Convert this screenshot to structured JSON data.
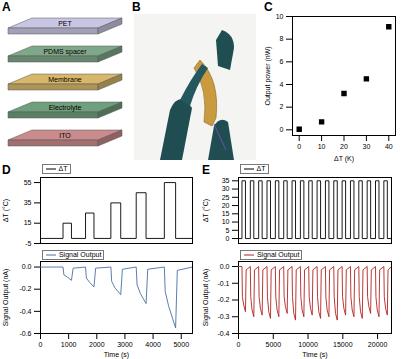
{
  "diagram": {
    "panel": "A",
    "layers": [
      {
        "label": "PET",
        "color": "#c9c6e3"
      },
      {
        "label": "PDMS spacer",
        "color": "#7fa88a"
      },
      {
        "label": "Membrane",
        "color": "#d8b76a"
      },
      {
        "label": "Electrolyte",
        "color": "#6f9f7c"
      },
      {
        "label": "ITO",
        "color": "#c98b8b"
      }
    ]
  },
  "photo": {
    "panel": "B"
  },
  "chart_data": [
    {
      "type": "scatter",
      "title": "C",
      "xlabel": "ΔT (K)",
      "ylabel": "Output power (nW)",
      "x": [
        0,
        10,
        20,
        30,
        40
      ],
      "values": [
        0.05,
        0.7,
        3.2,
        4.5,
        9.1
      ],
      "color": "#000000",
      "marker": "square",
      "xlim": [
        -3,
        43
      ],
      "xticks": [
        0,
        10,
        20,
        30,
        40
      ],
      "ylim": [
        -0.5,
        10
      ],
      "yticks": [
        0,
        2,
        4,
        6,
        8,
        10
      ],
      "grid": false
    },
    {
      "type": "line",
      "title": "D",
      "ylabel": "ΔT (°C)",
      "tick_labels": "y",
      "legend": "top-left",
      "grid": false,
      "x": [
        0,
        800,
        800,
        1100,
        1100,
        1600,
        1600,
        1900,
        1900,
        2500,
        2500,
        2850,
        2850,
        3400,
        3400,
        3750,
        3750,
        4400,
        4400,
        4800,
        4800,
        5400
      ],
      "series": [
        {
          "name": "ΔT",
          "color": "#000000",
          "values": [
            0,
            0,
            15,
            15,
            0,
            0,
            25,
            25,
            0,
            0,
            35,
            35,
            0,
            0,
            45,
            45,
            0,
            0,
            55,
            55,
            0,
            0
          ]
        }
      ],
      "xlim": [
        0,
        5400
      ],
      "ylim": [
        -5,
        60
      ],
      "yticks": [
        -5,
        15,
        35,
        55
      ]
    },
    {
      "type": "line",
      "xlabel": "Time (s)",
      "ylabel": "Signal Output (nA)",
      "legend": "top-left",
      "grid": false,
      "x": [
        0,
        800,
        830,
        950,
        1100,
        1160,
        1600,
        1630,
        1750,
        1900,
        1960,
        2500,
        2530,
        2650,
        2850,
        2910,
        3400,
        3430,
        3550,
        3750,
        3810,
        4400,
        4430,
        4550,
        4800,
        4860,
        5400
      ],
      "series": [
        {
          "name": "Signal Output",
          "color": "#4a6fa5",
          "values": [
            0,
            0,
            -0.07,
            -0.09,
            -0.12,
            -0.01,
            0,
            -0.1,
            -0.14,
            -0.18,
            -0.01,
            0,
            -0.13,
            -0.19,
            -0.25,
            -0.02,
            0,
            -0.16,
            -0.24,
            -0.33,
            -0.02,
            0,
            -0.22,
            -0.35,
            -0.55,
            -0.03,
            0
          ]
        }
      ],
      "xlim": [
        0,
        5400
      ],
      "xticks": [
        0,
        1000,
        2000,
        3000,
        4000,
        5000
      ],
      "ylim": [
        -0.6,
        0.05
      ],
      "yticks": [
        -0.6,
        -0.4,
        -0.2,
        {
          "value": 0,
          "label": "0.0"
        }
      ]
    },
    {
      "type": "line",
      "title": "E",
      "ylabel": "ΔT (°C)",
      "tick_labels": "y",
      "legend": "top-left",
      "grid": false,
      "x": [
        0,
        500,
        500,
        1000,
        1000,
        1700,
        1700,
        2200,
        2200,
        2900,
        2900,
        3400,
        3400,
        4100,
        4100,
        4600,
        4600,
        5300,
        5300,
        5800,
        5800,
        6500,
        6500,
        7000,
        7000,
        7700,
        7700,
        8200,
        8200,
        8900,
        8900,
        9400,
        9400,
        10100,
        10100,
        10600,
        10600,
        11300,
        11300,
        11800,
        11800,
        12500,
        12500,
        13000,
        13000,
        13700,
        13700,
        14200,
        14200,
        14900,
        14900,
        15400,
        15400,
        16100,
        16100,
        16600,
        16600,
        17300,
        17300,
        17800,
        17800,
        18500,
        18500,
        19000,
        19000,
        19700,
        19700,
        20200,
        20200,
        20900,
        20900,
        21400,
        21400,
        22000
      ],
      "series": [
        {
          "name": "ΔT",
          "color": "#000000",
          "values": [
            0,
            0,
            35,
            35,
            0,
            0,
            35,
            35,
            0,
            0,
            35,
            35,
            0,
            0,
            35,
            35,
            0,
            0,
            35,
            35,
            0,
            0,
            35,
            35,
            0,
            0,
            35,
            35,
            0,
            0,
            35,
            35,
            0,
            0,
            35,
            35,
            0,
            0,
            35,
            35,
            0,
            0,
            35,
            35,
            0,
            0,
            35,
            35,
            0,
            0,
            35,
            35,
            0,
            0,
            35,
            35,
            0,
            0,
            35,
            35,
            0,
            0,
            35,
            35,
            0,
            0,
            35,
            35,
            0,
            0,
            35,
            35,
            0,
            0
          ]
        }
      ],
      "xlim": [
        0,
        22000
      ],
      "ylim": [
        -3,
        37
      ],
      "yticks": [
        0,
        5,
        10,
        15,
        20,
        25,
        30,
        35
      ]
    },
    {
      "type": "line",
      "xlabel": "Time (s)",
      "ylabel": "Signal Output (nA)",
      "legend": "top-left",
      "grid": false,
      "x": [
        0,
        500,
        560,
        750,
        1000,
        1100,
        1700,
        1760,
        1950,
        2200,
        2300,
        2900,
        2960,
        3150,
        3400,
        3500,
        4100,
        4160,
        4350,
        4600,
        4700,
        5300,
        5360,
        5550,
        5800,
        5900,
        6500,
        6560,
        6750,
        7000,
        7100,
        7700,
        7760,
        7950,
        8200,
        8300,
        8900,
        8960,
        9150,
        9400,
        9500,
        10100,
        10160,
        10350,
        10600,
        10700,
        11300,
        11360,
        11550,
        11800,
        11900,
        12500,
        12560,
        12750,
        13000,
        13100,
        13700,
        13760,
        13950,
        14200,
        14300,
        14900,
        14960,
        15150,
        15400,
        15500,
        16100,
        16160,
        16350,
        16600,
        16700,
        17300,
        17360,
        17550,
        17800,
        17900,
        18500,
        18560,
        18750,
        19000,
        19100,
        19700,
        19760,
        19950,
        20200,
        20300,
        20900,
        20960,
        21150,
        21400,
        21500,
        22000
      ],
      "series": [
        {
          "name": "Signal Output",
          "color": "#b22222",
          "values": [
            0,
            0,
            -0.18,
            -0.23,
            -0.27,
            -0.02,
            0,
            -0.18,
            -0.26,
            -0.3,
            -0.02,
            0,
            -0.18,
            -0.25,
            -0.29,
            -0.02,
            0,
            -0.18,
            -0.27,
            -0.31,
            -0.02,
            0,
            -0.18,
            -0.26,
            -0.3,
            -0.02,
            0,
            -0.18,
            -0.24,
            -0.28,
            -0.02,
            0,
            -0.18,
            -0.28,
            -0.32,
            -0.02,
            0,
            -0.18,
            -0.26,
            -0.3,
            -0.02,
            0,
            -0.18,
            -0.25,
            -0.29,
            -0.02,
            0,
            -0.18,
            -0.27,
            -0.31,
            -0.02,
            0,
            -0.18,
            -0.26,
            -0.3,
            -0.02,
            0,
            -0.18,
            -0.28,
            -0.32,
            -0.02,
            0,
            -0.18,
            -0.25,
            -0.29,
            -0.02,
            0,
            -0.18,
            -0.26,
            -0.3,
            -0.02,
            0,
            -0.18,
            -0.27,
            -0.31,
            -0.02,
            0,
            -0.18,
            -0.24,
            -0.28,
            -0.02,
            0,
            -0.18,
            -0.26,
            -0.3,
            -0.02,
            0,
            -0.18,
            -0.25,
            -0.29,
            -0.02,
            0
          ]
        }
      ],
      "xlim": [
        0,
        22000
      ],
      "xticks": [
        0,
        5000,
        10000,
        15000,
        20000
      ],
      "ylim": [
        -0.4,
        0.03
      ],
      "yticks": [
        -0.4,
        -0.3,
        -0.2,
        -0.1,
        {
          "value": 0,
          "label": "0.0"
        }
      ]
    }
  ]
}
